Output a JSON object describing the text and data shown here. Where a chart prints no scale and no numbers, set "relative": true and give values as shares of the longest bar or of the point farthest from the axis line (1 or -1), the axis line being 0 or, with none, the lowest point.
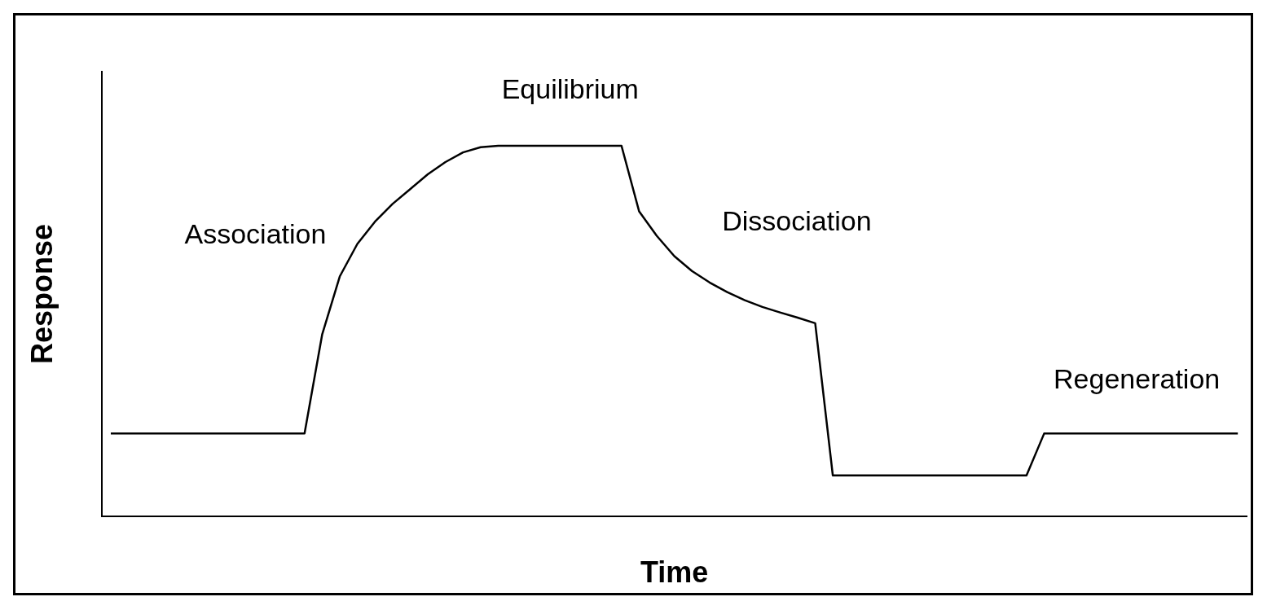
{
  "chart_data": {
    "type": "line",
    "xlabel": "Time",
    "ylabel": "Response",
    "relative": true,
    "grid": false,
    "marker": "none",
    "color": "#000000",
    "categories": [
      null,
      null,
      null,
      null,
      null,
      null,
      null,
      null,
      null,
      null,
      null,
      null,
      null,
      null,
      null,
      null,
      null,
      null,
      null,
      null,
      null,
      null,
      null,
      null,
      null,
      null,
      null,
      null,
      null,
      null,
      null,
      null,
      null,
      null,
      null,
      null,
      null,
      null,
      null,
      null,
      null,
      null,
      null,
      null,
      null,
      null,
      null,
      null,
      null,
      null,
      null,
      null,
      null,
      null,
      null,
      null,
      null,
      null,
      null,
      null,
      null,
      null,
      null,
      null,
      null
    ],
    "values": [
      0.223,
      0.223,
      0.223,
      0.223,
      0.223,
      0.223,
      0.223,
      0.223,
      0.223,
      0.223,
      0.223,
      0.223,
      0.49,
      0.647,
      0.735,
      0.795,
      0.843,
      0.883,
      0.923,
      0.956,
      0.982,
      0.996,
      1,
      1,
      1,
      1,
      1,
      1,
      1,
      1,
      0.823,
      0.757,
      0.702,
      0.662,
      0.631,
      0.605,
      0.583,
      0.565,
      0.55,
      0.536,
      0.521,
      0.11,
      0.11,
      0.11,
      0.11,
      0.11,
      0.11,
      0.11,
      0.11,
      0.11,
      0.11,
      0.11,
      0.11,
      0.223,
      0.223,
      0.223,
      0.223,
      0.223,
      0.223,
      0.223,
      0.223,
      0.223,
      0.223,
      0.223,
      0.223
    ],
    "annotations": [
      "Association",
      "Equilibrium",
      "Dissociation",
      "Regeneration"
    ]
  }
}
